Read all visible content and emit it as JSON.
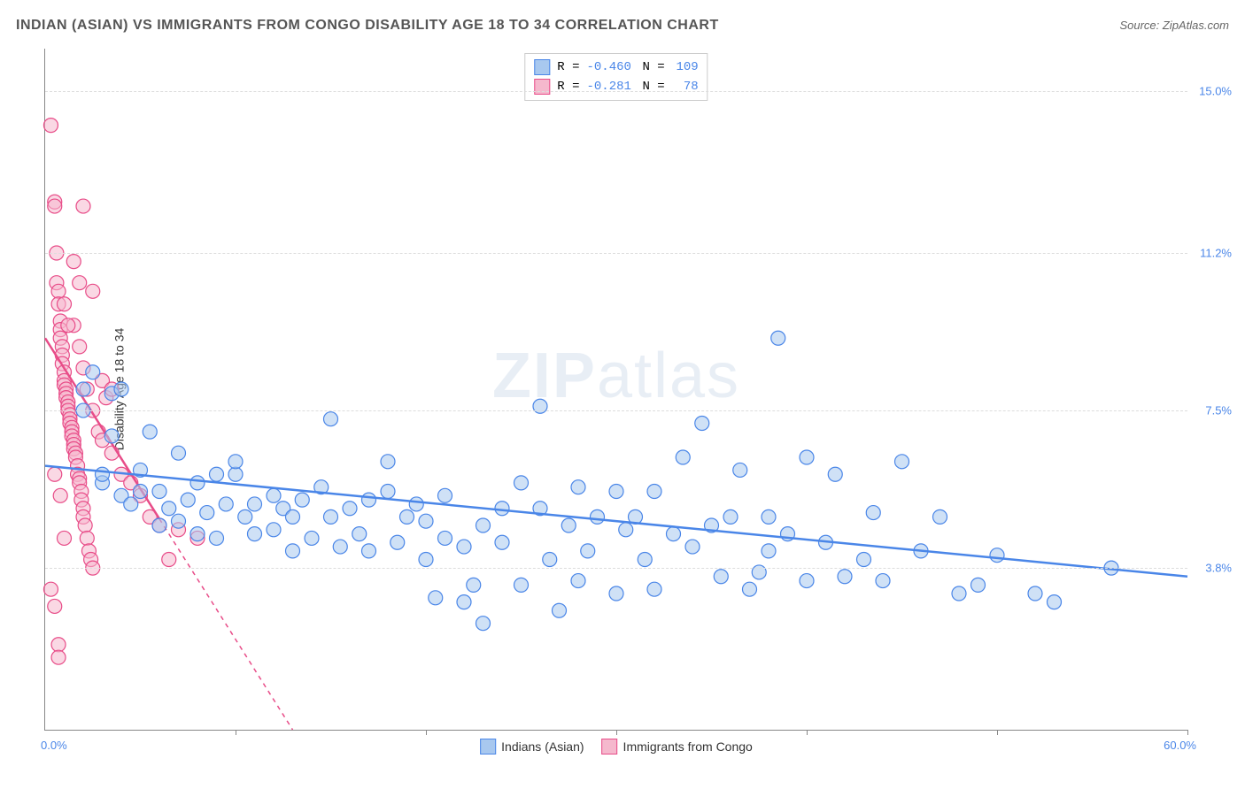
{
  "title": "INDIAN (ASIAN) VS IMMIGRANTS FROM CONGO DISABILITY AGE 18 TO 34 CORRELATION CHART",
  "source": "Source: ZipAtlas.com",
  "ylabel": "Disability Age 18 to 34",
  "watermark_a": "ZIP",
  "watermark_b": "atlas",
  "chart": {
    "type": "scatter",
    "xlim": [
      0,
      60
    ],
    "ylim": [
      0,
      16
    ],
    "xtick_positions": [
      10,
      20,
      30,
      40,
      50,
      60
    ],
    "ytick_labels": [
      {
        "y": 15.0,
        "label": "15.0%",
        "color": "#4a86e8"
      },
      {
        "y": 11.2,
        "label": "11.2%",
        "color": "#4a86e8"
      },
      {
        "y": 7.5,
        "label": "7.5%",
        "color": "#4a86e8"
      },
      {
        "y": 3.8,
        "label": "3.8%",
        "color": "#4a86e8"
      }
    ],
    "ygrid": [
      15.0,
      11.2,
      7.5,
      3.8
    ],
    "corner_labels": {
      "origin": {
        "text": "0.0%",
        "color": "#4a86e8"
      },
      "xmax": {
        "text": "60.0%",
        "color": "#4a86e8"
      }
    },
    "background_color": "#ffffff",
    "grid_color": "#dddddd",
    "marker_radius": 8,
    "marker_opacity": 0.55,
    "line_width": 2.5
  },
  "series": [
    {
      "name": "Indians (Asian)",
      "fill": "#a8c8ef",
      "stroke": "#4a86e8",
      "R": "-0.460",
      "N": "109",
      "trend": {
        "x1": 0,
        "y1": 6.2,
        "x2": 60,
        "y2": 3.6,
        "dash": "none"
      },
      "points": [
        [
          2,
          8.0
        ],
        [
          2,
          7.5
        ],
        [
          2.5,
          8.4
        ],
        [
          3,
          5.8
        ],
        [
          3,
          6.0
        ],
        [
          3.5,
          7.9
        ],
        [
          3.5,
          6.9
        ],
        [
          4,
          5.5
        ],
        [
          4,
          8.0
        ],
        [
          4.5,
          5.3
        ],
        [
          5,
          6.1
        ],
        [
          5,
          5.6
        ],
        [
          5.5,
          7.0
        ],
        [
          6,
          4.8
        ],
        [
          6,
          5.6
        ],
        [
          6.5,
          5.2
        ],
        [
          7,
          6.5
        ],
        [
          7,
          4.9
        ],
        [
          7.5,
          5.4
        ],
        [
          8,
          5.8
        ],
        [
          8,
          4.6
        ],
        [
          8.5,
          5.1
        ],
        [
          9,
          6.0
        ],
        [
          9,
          4.5
        ],
        [
          9.5,
          5.3
        ],
        [
          10,
          6.0
        ],
        [
          10,
          6.3
        ],
        [
          10.5,
          5.0
        ],
        [
          11,
          4.6
        ],
        [
          11,
          5.3
        ],
        [
          12,
          4.7
        ],
        [
          12,
          5.5
        ],
        [
          12.5,
          5.2
        ],
        [
          13,
          4.2
        ],
        [
          13,
          5.0
        ],
        [
          13.5,
          5.4
        ],
        [
          14,
          4.5
        ],
        [
          14.5,
          5.7
        ],
        [
          15,
          7.3
        ],
        [
          15,
          5.0
        ],
        [
          15.5,
          4.3
        ],
        [
          16,
          5.2
        ],
        [
          16.5,
          4.6
        ],
        [
          17,
          5.4
        ],
        [
          17,
          4.2
        ],
        [
          18,
          5.6
        ],
        [
          18,
          6.3
        ],
        [
          18.5,
          4.4
        ],
        [
          19,
          5.0
        ],
        [
          19.5,
          5.3
        ],
        [
          20,
          4.0
        ],
        [
          20,
          4.9
        ],
        [
          20.5,
          3.1
        ],
        [
          21,
          4.5
        ],
        [
          21,
          5.5
        ],
        [
          22,
          4.3
        ],
        [
          22,
          3.0
        ],
        [
          22.5,
          3.4
        ],
        [
          23,
          4.8
        ],
        [
          23,
          2.5
        ],
        [
          24,
          5.2
        ],
        [
          24,
          4.4
        ],
        [
          25,
          3.4
        ],
        [
          25,
          5.8
        ],
        [
          26,
          7.6
        ],
        [
          26,
          5.2
        ],
        [
          26.5,
          4.0
        ],
        [
          27,
          2.8
        ],
        [
          27.5,
          4.8
        ],
        [
          28,
          5.7
        ],
        [
          28,
          3.5
        ],
        [
          28.5,
          4.2
        ],
        [
          29,
          5.0
        ],
        [
          30,
          5.6
        ],
        [
          30,
          3.2
        ],
        [
          30.5,
          4.7
        ],
        [
          31,
          5.0
        ],
        [
          31.5,
          4.0
        ],
        [
          32,
          5.6
        ],
        [
          32,
          3.3
        ],
        [
          33,
          4.6
        ],
        [
          33.5,
          6.4
        ],
        [
          34,
          4.3
        ],
        [
          34.5,
          7.2
        ],
        [
          35,
          4.8
        ],
        [
          35.5,
          3.6
        ],
        [
          36,
          5.0
        ],
        [
          36.5,
          6.1
        ],
        [
          37,
          3.3
        ],
        [
          37.5,
          3.7
        ],
        [
          38,
          5.0
        ],
        [
          38,
          4.2
        ],
        [
          38.5,
          9.2
        ],
        [
          39,
          4.6
        ],
        [
          40,
          6.4
        ],
        [
          40,
          3.5
        ],
        [
          41,
          4.4
        ],
        [
          41.5,
          6.0
        ],
        [
          42,
          3.6
        ],
        [
          43,
          4.0
        ],
        [
          43.5,
          5.1
        ],
        [
          44,
          3.5
        ],
        [
          45,
          6.3
        ],
        [
          46,
          4.2
        ],
        [
          47,
          5.0
        ],
        [
          48,
          3.2
        ],
        [
          49,
          3.4
        ],
        [
          50,
          4.1
        ],
        [
          52,
          3.2
        ],
        [
          53,
          3.0
        ],
        [
          56,
          3.8
        ]
      ]
    },
    {
      "name": "Immigrants from Congo",
      "fill": "#f5b8cd",
      "stroke": "#e84c88",
      "R": "-0.281",
      "N": "78",
      "trend": {
        "x1": 0,
        "y1": 9.2,
        "x2": 13,
        "y2": 0,
        "dash_from_x": 6
      },
      "points": [
        [
          0.3,
          14.2
        ],
        [
          0.5,
          12.4
        ],
        [
          0.5,
          12.3
        ],
        [
          0.6,
          11.2
        ],
        [
          0.6,
          10.5
        ],
        [
          0.7,
          10.3
        ],
        [
          0.7,
          10.0
        ],
        [
          0.8,
          9.6
        ],
        [
          0.8,
          9.4
        ],
        [
          0.8,
          9.2
        ],
        [
          0.9,
          9.0
        ],
        [
          0.9,
          8.8
        ],
        [
          0.9,
          8.6
        ],
        [
          1.0,
          8.4
        ],
        [
          1.0,
          8.2
        ],
        [
          1.0,
          8.1
        ],
        [
          1.1,
          8.0
        ],
        [
          1.1,
          7.9
        ],
        [
          1.1,
          7.8
        ],
        [
          1.2,
          7.7
        ],
        [
          1.2,
          7.6
        ],
        [
          1.2,
          7.5
        ],
        [
          1.3,
          7.4
        ],
        [
          1.3,
          7.3
        ],
        [
          1.3,
          7.2
        ],
        [
          1.4,
          7.1
        ],
        [
          1.4,
          7.0
        ],
        [
          1.4,
          6.9
        ],
        [
          1.5,
          6.8
        ],
        [
          1.5,
          6.7
        ],
        [
          1.5,
          6.6
        ],
        [
          1.6,
          6.5
        ],
        [
          1.6,
          6.4
        ],
        [
          1.7,
          6.2
        ],
        [
          1.7,
          6.0
        ],
        [
          1.8,
          5.9
        ],
        [
          1.8,
          5.8
        ],
        [
          1.9,
          5.6
        ],
        [
          1.9,
          5.4
        ],
        [
          2.0,
          5.2
        ],
        [
          2.0,
          5.0
        ],
        [
          2.1,
          4.8
        ],
        [
          2.2,
          4.5
        ],
        [
          2.3,
          4.2
        ],
        [
          2.4,
          4.0
        ],
        [
          2.5,
          3.8
        ],
        [
          0.3,
          3.3
        ],
        [
          0.5,
          2.9
        ],
        [
          0.7,
          2.0
        ],
        [
          0.7,
          1.7
        ],
        [
          2.0,
          12.3
        ],
        [
          2.5,
          10.3
        ],
        [
          1.5,
          9.5
        ],
        [
          1.8,
          9.0
        ],
        [
          2.0,
          8.5
        ],
        [
          2.2,
          8.0
        ],
        [
          2.5,
          7.5
        ],
        [
          2.8,
          7.0
        ],
        [
          3.0,
          6.8
        ],
        [
          3.5,
          6.5
        ],
        [
          4.0,
          6.0
        ],
        [
          4.5,
          5.8
        ],
        [
          5.0,
          5.5
        ],
        [
          5.5,
          5.0
        ],
        [
          6.0,
          4.8
        ],
        [
          3.0,
          8.2
        ],
        [
          3.2,
          7.8
        ],
        [
          3.5,
          8.0
        ],
        [
          1.0,
          10.0
        ],
        [
          1.2,
          9.5
        ],
        [
          1.5,
          11.0
        ],
        [
          1.8,
          10.5
        ],
        [
          0.5,
          6.0
        ],
        [
          0.8,
          5.5
        ],
        [
          1.0,
          4.5
        ],
        [
          6.5,
          4.0
        ],
        [
          7.0,
          4.7
        ],
        [
          8.0,
          4.5
        ]
      ]
    }
  ],
  "legend_bottom": [
    {
      "label": "Indians (Asian)",
      "fill": "#a8c8ef",
      "stroke": "#4a86e8"
    },
    {
      "label": "Immigrants from Congo",
      "fill": "#f5b8cd",
      "stroke": "#e84c88"
    }
  ]
}
